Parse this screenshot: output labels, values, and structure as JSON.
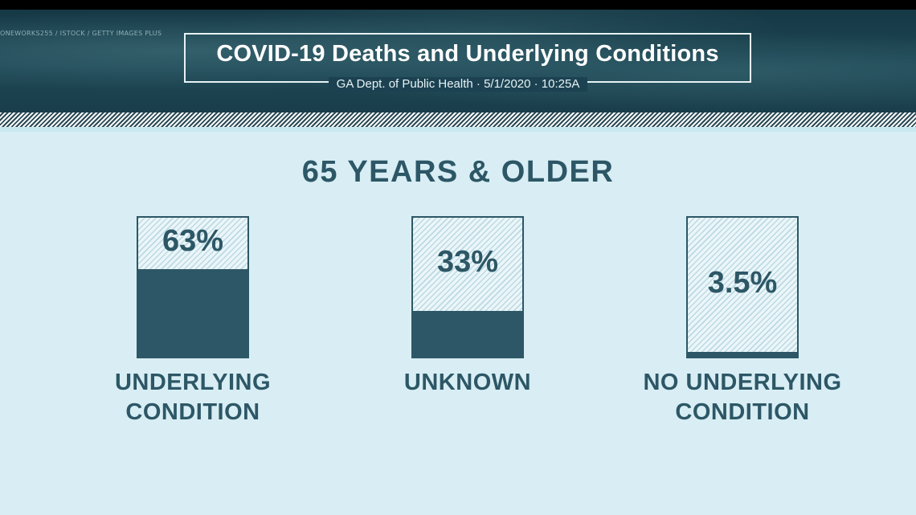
{
  "header": {
    "credit": "ONEWORKS255 / ISTOCK / GETTY IMAGES PLUS",
    "title": "COVID-19 Deaths and Underlying Conditions",
    "subtitle": "GA Dept. of Public Health · 5/1/2020 · 10:25A"
  },
  "colors": {
    "bar": "#2d5766",
    "background": "#d8eef4",
    "header": "#1c4251"
  },
  "chart_data": {
    "type": "bar",
    "title": "65 YEARS & OLDER",
    "categories": [
      "UNDERLYING CONDITION",
      "UNKNOWN",
      "NO UNDERLYING CONDITION"
    ],
    "value_labels": [
      "63%",
      "33%",
      "3.5%"
    ],
    "values": [
      63,
      33,
      3.5
    ],
    "ylim": [
      0,
      100
    ]
  }
}
